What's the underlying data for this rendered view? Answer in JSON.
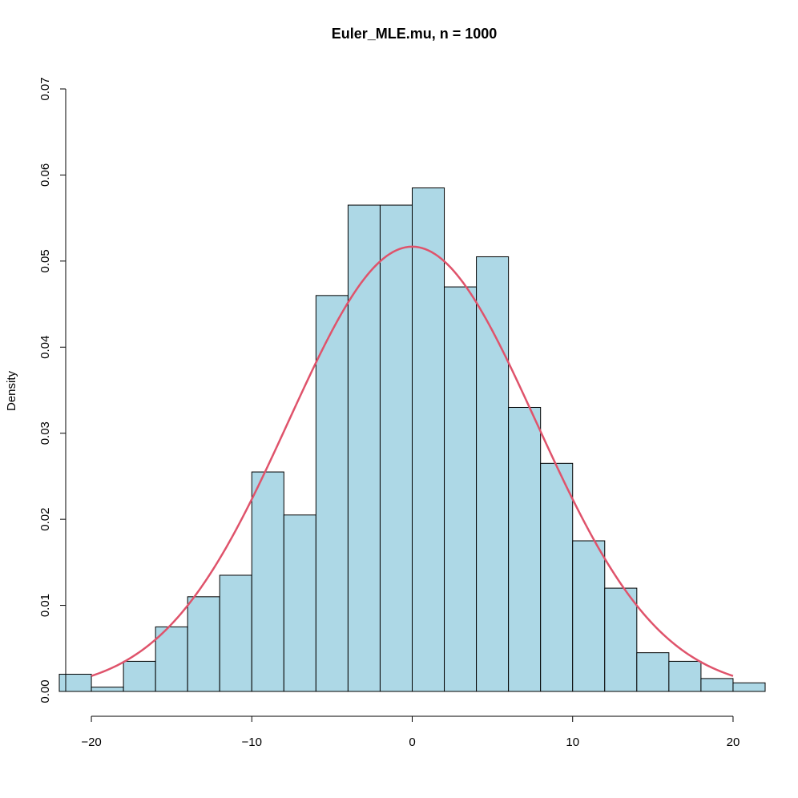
{
  "chart_data": {
    "type": "bar",
    "title": "Euler_MLE.mu, n = 1000",
    "xlabel": "",
    "ylabel": "Density",
    "xlim": [
      -22,
      22
    ],
    "ylim": [
      0,
      0.07
    ],
    "x_ticks": [
      -20,
      -10,
      0,
      10,
      20
    ],
    "x_tick_labels": [
      "−20",
      "−10",
      "0",
      "10",
      "20"
    ],
    "y_ticks": [
      0,
      0.01,
      0.02,
      0.03,
      0.04,
      0.05,
      0.06,
      0.07
    ],
    "y_tick_labels": [
      "0.00",
      "0.01",
      "0.02",
      "0.03",
      "0.04",
      "0.05",
      "0.06",
      "0.07"
    ],
    "bins": [
      {
        "start": -22,
        "end": -20,
        "density": 0.002
      },
      {
        "start": -20,
        "end": -18,
        "density": 0.0005
      },
      {
        "start": -18,
        "end": -16,
        "density": 0.0035
      },
      {
        "start": -16,
        "end": -14,
        "density": 0.0075
      },
      {
        "start": -14,
        "end": -12,
        "density": 0.011
      },
      {
        "start": -12,
        "end": -10,
        "density": 0.0135
      },
      {
        "start": -10,
        "end": -8,
        "density": 0.0255
      },
      {
        "start": -8,
        "end": -6,
        "density": 0.0205
      },
      {
        "start": -6,
        "end": -4,
        "density": 0.046
      },
      {
        "start": -4,
        "end": -2,
        "density": 0.0565
      },
      {
        "start": -2,
        "end": 0,
        "density": 0.0565
      },
      {
        "start": 0,
        "end": 2,
        "density": 0.0585
      },
      {
        "start": 2,
        "end": 4,
        "density": 0.047
      },
      {
        "start": 4,
        "end": 6,
        "density": 0.0505
      },
      {
        "start": 6,
        "end": 8,
        "density": 0.033
      },
      {
        "start": 8,
        "end": 10,
        "density": 0.0265
      },
      {
        "start": 10,
        "end": 12,
        "density": 0.0175
      },
      {
        "start": 12,
        "end": 14,
        "density": 0.012
      },
      {
        "start": 14,
        "end": 16,
        "density": 0.0045
      },
      {
        "start": 16,
        "end": 18,
        "density": 0.0035
      },
      {
        "start": 18,
        "end": 20,
        "density": 0.0015
      },
      {
        "start": 20,
        "end": 22,
        "density": 0.001
      }
    ],
    "curve": {
      "type": "normal-density",
      "mean": 0,
      "sd": 7.72,
      "x_range": [
        -20,
        20
      ]
    },
    "bar_fill": "#add8e6",
    "bar_stroke": "#000000",
    "curve_color": "#df536b",
    "grid": false
  }
}
